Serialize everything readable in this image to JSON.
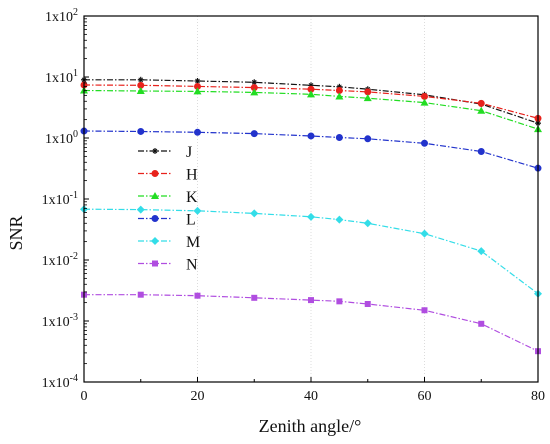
{
  "chart_data": {
    "type": "line",
    "xlabel": "Zenith angle/°",
    "ylabel": "SNR",
    "xlim": [
      0,
      80
    ],
    "ylim_log10": [
      -4,
      2
    ],
    "y_scale": "log",
    "grid": "vertical-dotted",
    "legend_position": "left-middle",
    "x_ticks": [
      "0",
      "20",
      "40",
      "60",
      "80"
    ],
    "x_tick_values": [
      0,
      20,
      40,
      60,
      80
    ],
    "y_ticks": [
      {
        "mantissa": "1x10",
        "exp": "2",
        "value": 100
      },
      {
        "mantissa": "1x10",
        "exp": "1",
        "value": 10
      },
      {
        "mantissa": "1x10",
        "exp": "0",
        "value": 1
      },
      {
        "mantissa": "1x10",
        "exp": "-1",
        "value": 0.1
      },
      {
        "mantissa": "1x10",
        "exp": "-2",
        "value": 0.01
      },
      {
        "mantissa": "1x10",
        "exp": "-3",
        "value": 0.001
      },
      {
        "mantissa": "1x10",
        "exp": "-4",
        "value": 0.0001
      }
    ],
    "x": [
      0,
      10,
      20,
      30,
      40,
      45,
      50,
      60,
      70,
      80
    ],
    "series": [
      {
        "name": "J",
        "color": "#111111",
        "marker": "star",
        "values": [
          9.0,
          9.0,
          8.6,
          8.2,
          7.3,
          6.9,
          6.3,
          5.1,
          3.6,
          1.75
        ]
      },
      {
        "name": "H",
        "color": "#e8221c",
        "marker": "circle",
        "values": [
          7.4,
          7.3,
          7.0,
          6.7,
          6.3,
          6.0,
          5.7,
          4.8,
          3.7,
          2.1
        ]
      },
      {
        "name": "K",
        "color": "#22dd22",
        "marker": "triangle",
        "values": [
          6.0,
          5.9,
          5.8,
          5.6,
          5.2,
          4.8,
          4.5,
          3.8,
          2.8,
          1.4
        ]
      },
      {
        "name": "L",
        "color": "#2233cc",
        "marker": "circle",
        "values": [
          1.3,
          1.28,
          1.24,
          1.18,
          1.08,
          1.02,
          0.97,
          0.82,
          0.6,
          0.32
        ]
      },
      {
        "name": "M",
        "color": "#33dde8",
        "marker": "diamond",
        "values": [
          0.068,
          0.067,
          0.064,
          0.058,
          0.051,
          0.046,
          0.04,
          0.027,
          0.014,
          0.0028
        ]
      },
      {
        "name": "N",
        "color": "#b04de0",
        "marker": "square",
        "values": [
          0.0027,
          0.0027,
          0.0026,
          0.0024,
          0.0022,
          0.0021,
          0.0019,
          0.0015,
          0.0009,
          0.00032
        ]
      }
    ]
  }
}
